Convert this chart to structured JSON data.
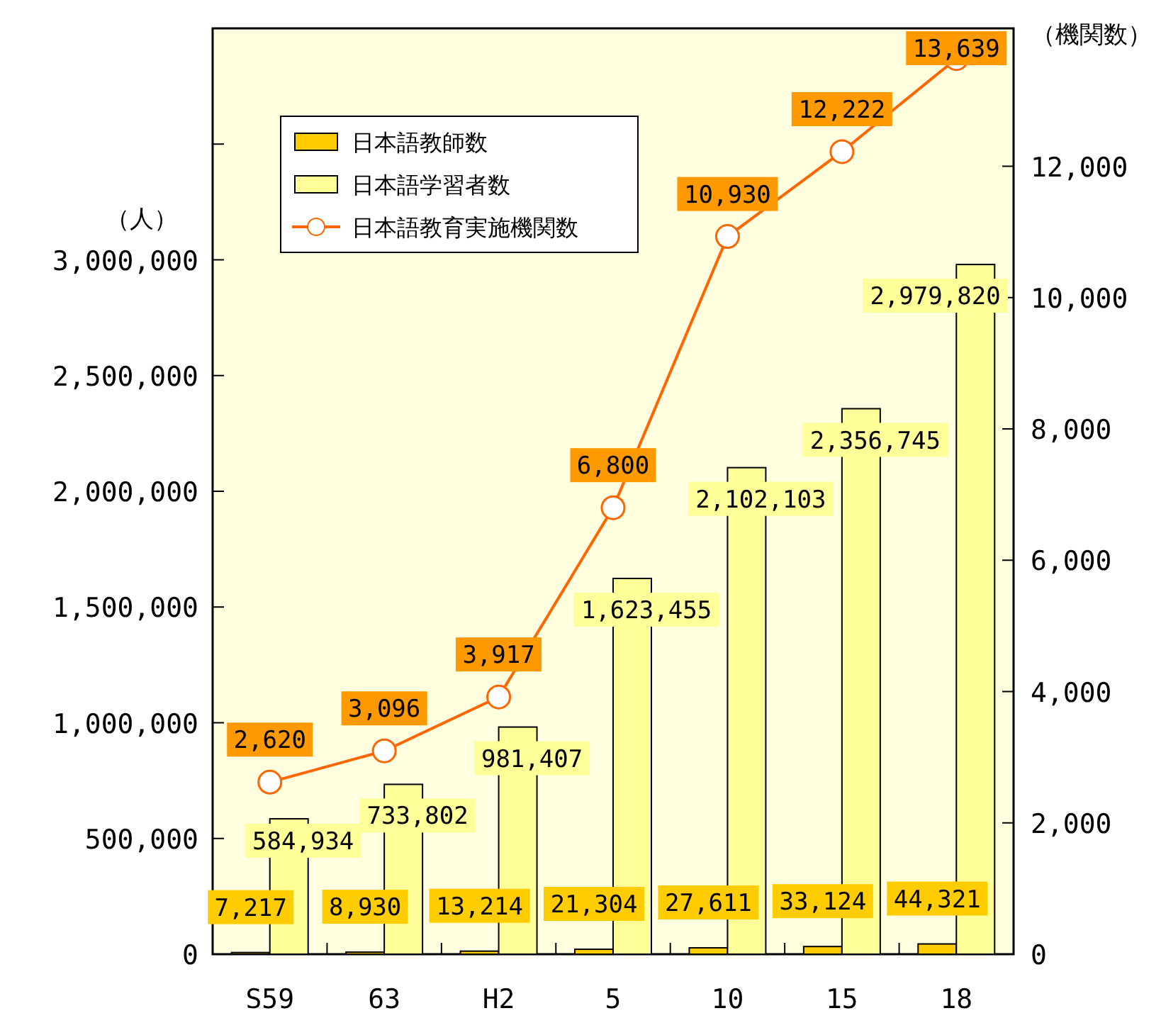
{
  "chart_data": {
    "type": "bar",
    "ylabel": "（人）",
    "y2label": "（機関数）",
    "categories": [
      "S59",
      "63",
      "H2",
      "5",
      "10",
      "15",
      "18"
    ],
    "series": [
      {
        "name": "日本語教師数",
        "color": "#ffcc00",
        "values": [
          7217,
          8930,
          13214,
          21304,
          27611,
          33124,
          44321
        ],
        "value_labels": [
          "7,217",
          "8,930",
          "13,214",
          "21,304",
          "27,611",
          "33,124",
          "44,321"
        ]
      },
      {
        "name": "日本語学習者数",
        "color": "#ffff99",
        "values": [
          584934,
          733802,
          981407,
          1623455,
          2102103,
          2356745,
          2979820
        ],
        "value_labels": [
          "584,934",
          "733,802",
          "981,407",
          "1,623,455",
          "2,102,103",
          "2,356,745",
          "2,979,820"
        ]
      },
      {
        "name": "日本語教育実施機関数",
        "type": "line",
        "axis": "y2",
        "color": "#ff6600",
        "marker": "circle",
        "values": [
          2620,
          3096,
          3917,
          6800,
          10930,
          12222,
          13639
        ],
        "value_labels": [
          "2,620",
          "3,096",
          "3,917",
          "6,800",
          "10,930",
          "12,222",
          "13,639"
        ]
      }
    ],
    "ylim": [
      0,
      4000000
    ],
    "yticks": [
      0,
      {
        "value": 500000,
        "label": "500,000"
      },
      {
        "value": 1000000,
        "label": "1,000,000"
      },
      {
        "value": 1500000,
        "label": "1,500,000"
      },
      {
        "value": 2000000,
        "label": "2,000,000"
      },
      {
        "value": 2500000,
        "label": "2,500,000"
      },
      {
        "value": 3000000,
        "label": "3,000,000"
      },
      {
        "value": 3500000,
        "label": null
      },
      {
        "value": 4000000,
        "label": null
      }
    ],
    "y2lim": [
      0,
      14100
    ],
    "y2ticks": [
      0,
      {
        "value": 2000,
        "label": "2,000"
      },
      {
        "value": 4000,
        "label": "4,000"
      },
      {
        "value": 6000,
        "label": "6,000"
      },
      {
        "value": 8000,
        "label": "8,000"
      },
      {
        "value": 10000,
        "label": "10,000"
      },
      {
        "value": 12000,
        "label": "12,000"
      }
    ],
    "legend": "top left"
  }
}
